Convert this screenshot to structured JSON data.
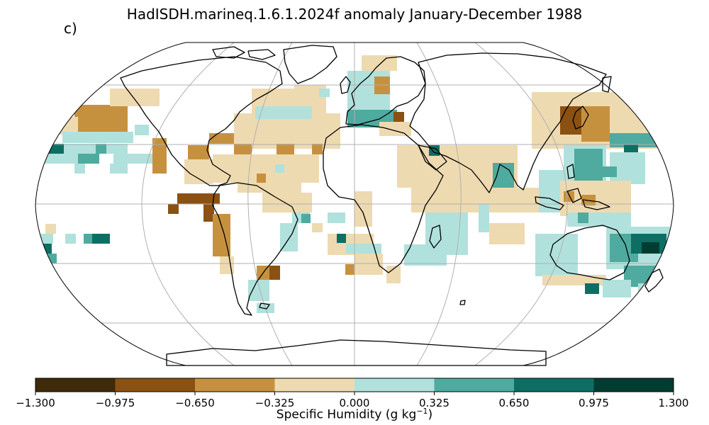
{
  "title": "HadISDH.marineq.1.6.1.2024f anomaly January-December 1988",
  "panel_label": "c)",
  "colorbar": {
    "label_main": "Specific Humidity (g kg",
    "label_sup": "−1",
    "label_end": ")",
    "ticks": [
      "−1.300",
      "−0.975",
      "−0.650",
      "−0.325",
      "0.000",
      "0.325",
      "0.650",
      "0.975",
      "1.300"
    ],
    "colors": [
      "#3f2a09",
      "#8b5112",
      "#c6913f",
      "#eedab0",
      "#b1e1dc",
      "#4faa9f",
      "#0d6f64",
      "#013c31"
    ]
  },
  "map": {
    "projection": "Robinson",
    "gridlines": true,
    "ocean_color": "#ffffff",
    "land_outline_color": "#000000"
  }
}
